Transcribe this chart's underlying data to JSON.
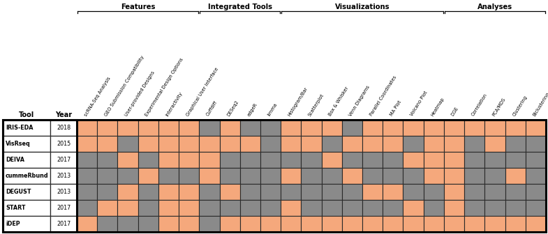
{
  "tools": [
    "IRIS-EDA",
    "VisRseq",
    "DEIVA",
    "cummeRbund",
    "DEGUST",
    "START",
    "iDEP"
  ],
  "years": [
    "2018",
    "2015",
    "2017",
    "2013",
    "2013",
    "2017",
    "2017"
  ],
  "columns": [
    "scRNA-Seq Analysis",
    "GEO Submission Compatibility",
    "User-provided Designs",
    "Experimental Design Options",
    "Interactivity",
    "Graphical User Interface",
    "Cuffdiff",
    "DESeq2",
    "edgeR",
    "limma",
    "Histogram/Bar",
    "Scatterplot",
    "Box & Whisker",
    "Venn Diagrams",
    "Parallel Coordinates",
    "MA Plot",
    "Volcano Plot",
    "Heatmap",
    "DGE",
    "Correlation",
    "PCA/MDS",
    "Clustering",
    "Biclustering"
  ],
  "categories": [
    "Features",
    "Integrated Tools",
    "Visualizations",
    "Analyses"
  ],
  "category_col_ranges": [
    [
      0,
      5
    ],
    [
      6,
      9
    ],
    [
      10,
      17
    ],
    [
      18,
      22
    ]
  ],
  "grid": [
    [
      1,
      1,
      1,
      1,
      1,
      1,
      0,
      1,
      0,
      0,
      1,
      1,
      1,
      0,
      1,
      1,
      1,
      1,
      1,
      1,
      1,
      1,
      1
    ],
    [
      1,
      1,
      0,
      1,
      1,
      1,
      1,
      1,
      1,
      0,
      1,
      1,
      0,
      1,
      1,
      1,
      0,
      1,
      1,
      0,
      1,
      0,
      0
    ],
    [
      0,
      0,
      1,
      0,
      1,
      1,
      1,
      0,
      0,
      0,
      0,
      0,
      1,
      0,
      0,
      0,
      1,
      1,
      1,
      0,
      0,
      0,
      0
    ],
    [
      0,
      0,
      0,
      1,
      0,
      0,
      1,
      0,
      0,
      0,
      1,
      0,
      0,
      1,
      0,
      0,
      0,
      1,
      1,
      0,
      0,
      1,
      0
    ],
    [
      0,
      0,
      1,
      0,
      1,
      1,
      0,
      1,
      0,
      0,
      0,
      0,
      0,
      0,
      1,
      1,
      0,
      0,
      1,
      0,
      0,
      0,
      0
    ],
    [
      0,
      1,
      1,
      0,
      1,
      1,
      0,
      0,
      0,
      0,
      1,
      0,
      0,
      0,
      0,
      0,
      1,
      0,
      1,
      0,
      0,
      0,
      0
    ],
    [
      1,
      0,
      0,
      0,
      1,
      1,
      0,
      1,
      1,
      1,
      1,
      1,
      1,
      1,
      1,
      1,
      1,
      1,
      1,
      1,
      1,
      1,
      1
    ]
  ],
  "cell_orange": "#F5A87C",
  "cell_gray": "#8A8A8A",
  "border_color": "#2a2a2a",
  "bg_color": "#ffffff",
  "fig_width": 7.85,
  "fig_height": 3.36,
  "dpi": 100
}
